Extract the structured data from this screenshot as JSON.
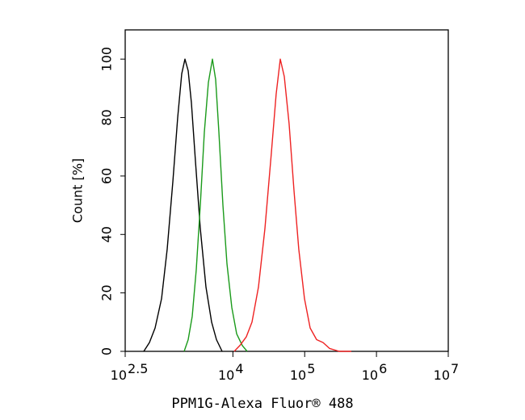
{
  "chart_data": {
    "type": "line",
    "xlabel": "PPM1G-Alexa Fluor® 488",
    "ylabel": "Count [%]",
    "xscale": "log",
    "xlim": [
      316.23,
      10000000
    ],
    "xticks": [
      {
        "value": 316.23,
        "label": "10",
        "label_exponent": "2.5"
      },
      {
        "value": 10000,
        "label": "10",
        "label_exponent": "4"
      },
      {
        "value": 100000,
        "label": "10",
        "label_exponent": "5"
      },
      {
        "value": 1000000,
        "label": "10",
        "label_exponent": "6"
      },
      {
        "value": 10000000,
        "label": "10",
        "label_exponent": "7"
      }
    ],
    "ylim": [
      0,
      110
    ],
    "yticks": [
      0,
      20,
      40,
      60,
      80,
      100
    ],
    "series": [
      {
        "color": "#000000",
        "x": [
          574,
          687,
          824,
          1014,
          1216,
          1458,
          1703,
          1938,
          2149,
          2384,
          2644,
          3013,
          3516,
          4217,
          5058,
          5902,
          7079
        ],
        "y": [
          0,
          3,
          8,
          18,
          35,
          58,
          80,
          95,
          100,
          96,
          85,
          65,
          42,
          22,
          10,
          4,
          0
        ]
      },
      {
        "color": "#1a9a1a",
        "x": [
          2094,
          2384,
          2716,
          3090,
          3516,
          4000,
          4560,
          5188,
          5754,
          6383,
          7261,
          8260,
          9661,
          11272,
          13521,
          15812
        ],
        "y": [
          0,
          4,
          12,
          28,
          50,
          75,
          92,
          100,
          93,
          75,
          50,
          30,
          15,
          6,
          2,
          0
        ]
      },
      {
        "color": "#ee2222",
        "x": [
          10447,
          12503,
          15382,
          18450,
          22699,
          27925,
          34356,
          40087,
          45709,
          52000,
          60674,
          70958,
          82794,
          99312,
          119124,
          146555,
          180302,
          221820,
          302691,
          446684
        ],
        "y": [
          0,
          2,
          5,
          10,
          22,
          42,
          68,
          88,
          100,
          94,
          78,
          55,
          35,
          18,
          8,
          4,
          3,
          1,
          0,
          0
        ]
      }
    ]
  }
}
